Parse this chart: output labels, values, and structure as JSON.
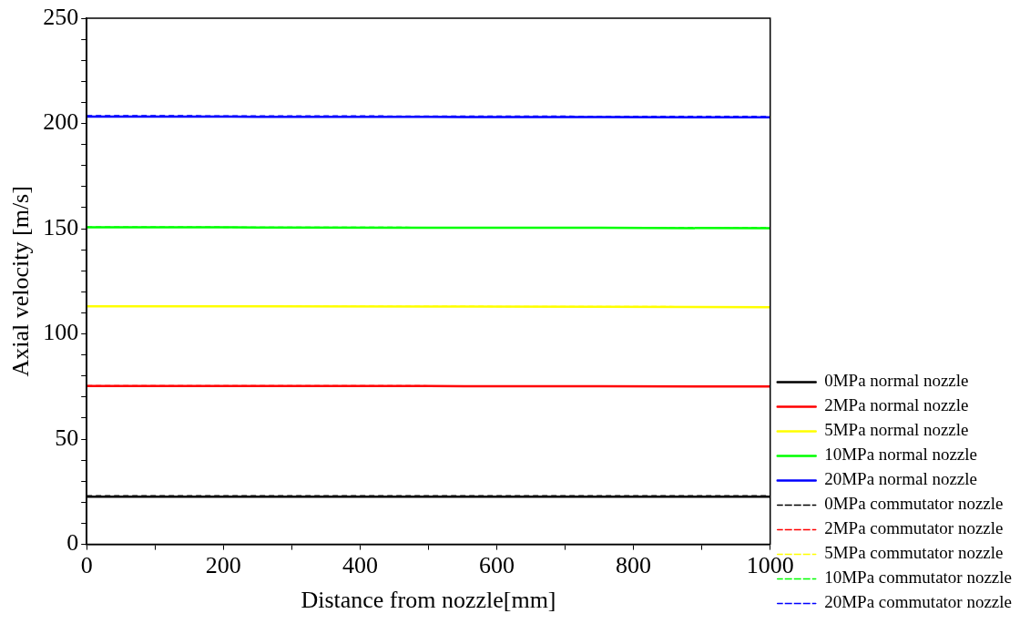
{
  "chart_data": {
    "type": "line",
    "xlabel": "Distance from nozzle[mm]",
    "ylabel": "Axial velocity [m/s]",
    "x": [
      0,
      250,
      500,
      750,
      1000
    ],
    "series": [
      {
        "name": "0MPa normal nozzle",
        "color": "#000000",
        "line_style": "solid",
        "values": [
          22.7,
          22.7,
          22.7,
          22.7,
          22.7
        ]
      },
      {
        "name": "2MPa normal nozzle",
        "color": "#ff0000",
        "line_style": "solid",
        "values": [
          75.3,
          75.3,
          75.2,
          75.1,
          75.0
        ]
      },
      {
        "name": "5MPa normal nozzle",
        "color": "#ffff00",
        "line_style": "solid",
        "values": [
          113.1,
          113.1,
          113.0,
          112.9,
          112.7
        ]
      },
      {
        "name": "10MPa normal nozzle",
        "color": "#00ff00",
        "line_style": "solid",
        "values": [
          150.7,
          150.6,
          150.5,
          150.4,
          150.2
        ]
      },
      {
        "name": "20MPa normal nozzle",
        "color": "#0000ff",
        "line_style": "solid",
        "values": [
          203.3,
          203.2,
          203.1,
          203.0,
          202.9
        ]
      },
      {
        "name": "0MPa commutator nozzle",
        "color": "#000000",
        "line_style": "dashed",
        "values": [
          23.1,
          23.1,
          23.1,
          23.1,
          23.1
        ]
      },
      {
        "name": "2MPa commutator nozzle",
        "color": "#ff0000",
        "line_style": "dashed",
        "values": [
          75.4,
          75.4,
          75.3,
          75.2,
          75.1
        ]
      },
      {
        "name": "5MPa commutator nozzle",
        "color": "#ffff00",
        "line_style": "dashed",
        "values": [
          113.2,
          113.2,
          113.1,
          113.0,
          112.9
        ]
      },
      {
        "name": "10MPa commutator nozzle",
        "color": "#00ff00",
        "line_style": "dashed",
        "values": [
          150.8,
          150.7,
          150.6,
          150.5,
          150.4
        ]
      },
      {
        "name": "20MPa commutator nozzle",
        "color": "#0000ff",
        "line_style": "dashed",
        "values": [
          203.7,
          203.6,
          203.5,
          203.4,
          203.3
        ]
      }
    ],
    "xlim": [
      0,
      1000
    ],
    "xticks": [
      0,
      {
        "value": 100,
        "label": null
      },
      200,
      {
        "value": 300,
        "label": null
      },
      400,
      {
        "value": 500,
        "label": null
      },
      600,
      {
        "value": 700,
        "label": null
      },
      800,
      {
        "value": 900,
        "label": null
      },
      1000
    ],
    "ylim": [
      0,
      250
    ],
    "yticks": [
      0,
      {
        "value": 10,
        "label": null
      },
      {
        "value": 20,
        "label": null
      },
      {
        "value": 30,
        "label": null
      },
      {
        "value": 40,
        "label": null
      },
      50,
      {
        "value": 60,
        "label": null
      },
      {
        "value": 70,
        "label": null
      },
      {
        "value": 80,
        "label": null
      },
      {
        "value": 90,
        "label": null
      },
      100,
      {
        "value": 110,
        "label": null
      },
      {
        "value": 120,
        "label": null
      },
      {
        "value": 130,
        "label": null
      },
      {
        "value": 140,
        "label": null
      },
      150,
      {
        "value": 160,
        "label": null
      },
      {
        "value": 170,
        "label": null
      },
      {
        "value": 180,
        "label": null
      },
      {
        "value": 190,
        "label": null
      },
      200,
      {
        "value": 210,
        "label": null
      },
      {
        "value": 220,
        "label": null
      },
      {
        "value": 230,
        "label": null
      },
      {
        "value": 240,
        "label": null
      },
      250
    ],
    "grid": false,
    "legend": "right",
    "marker": "none"
  }
}
